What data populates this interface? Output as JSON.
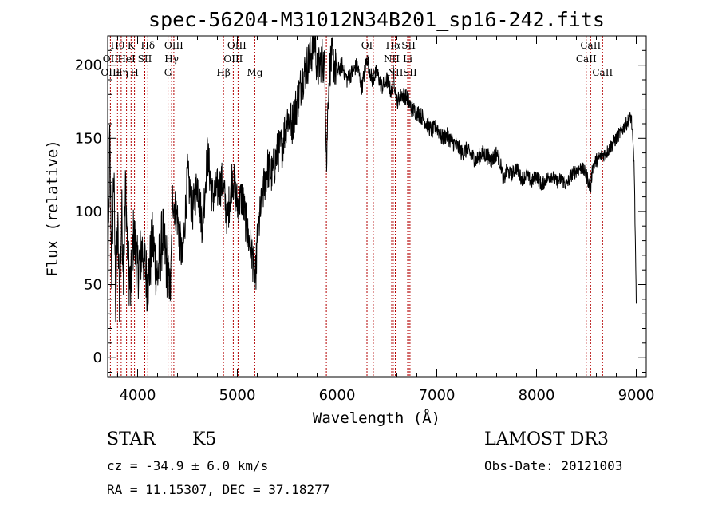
{
  "chart_data": {
    "type": "line",
    "title": "spec-56204-M31012N34B201_sp16-242.fits",
    "xlabel": "Wavelength (Å)",
    "ylabel": "Flux (relative)",
    "xlim": [
      3700,
      9100
    ],
    "ylim": [
      -13,
      220
    ],
    "x_ticks": [
      4000,
      5000,
      6000,
      7000,
      8000,
      9000
    ],
    "y_ticks": [
      0,
      50,
      100,
      150,
      200
    ],
    "grid": false,
    "series": [
      {
        "name": "flux",
        "x": [
          3700,
          3720,
          3740,
          3760,
          3780,
          3800,
          3820,
          3840,
          3860,
          3880,
          3900,
          3930,
          3960,
          4000,
          4050,
          4100,
          4150,
          4200,
          4250,
          4300,
          4330,
          4350,
          4400,
          4450,
          4500,
          4550,
          4600,
          4650,
          4700,
          4750,
          4800,
          4850,
          4900,
          4950,
          5000,
          5050,
          5100,
          5150,
          5180,
          5200,
          5250,
          5300,
          5350,
          5400,
          5450,
          5500,
          5550,
          5600,
          5650,
          5700,
          5750,
          5780,
          5800,
          5850,
          5880,
          5895,
          5910,
          5930,
          5950,
          6000,
          6050,
          6100,
          6150,
          6200,
          6250,
          6300,
          6350,
          6400,
          6450,
          6500,
          6550,
          6563,
          6600,
          6650,
          6700,
          6750,
          6800,
          6850,
          6900,
          6950,
          7000,
          7050,
          7100,
          7150,
          7200,
          7250,
          7300,
          7350,
          7400,
          7450,
          7500,
          7550,
          7600,
          7650,
          7670,
          7700,
          7750,
          7800,
          7850,
          7900,
          7950,
          8000,
          8050,
          8100,
          8150,
          8200,
          8250,
          8300,
          8350,
          8400,
          8450,
          8500,
          8542,
          8560,
          8600,
          8650,
          8700,
          8750,
          8800,
          8850,
          8900,
          8950,
          8980,
          9000
        ],
        "values": [
          20,
          150,
          60,
          130,
          40,
          90,
          35,
          100,
          60,
          120,
          70,
          45,
          85,
          60,
          75,
          50,
          80,
          55,
          85,
          60,
          45,
          110,
          95,
          65,
          125,
          100,
          120,
          90,
          140,
          110,
          115,
          120,
          95,
          125,
          105,
          110,
          85,
          70,
          50,
          80,
          110,
          130,
          125,
          140,
          145,
          165,
          160,
          175,
          190,
          200,
          210,
          218,
          195,
          205,
          195,
          130,
          180,
          200,
          205,
          195,
          200,
          190,
          195,
          200,
          185,
          205,
          190,
          195,
          185,
          190,
          180,
          195,
          175,
          180,
          178,
          170,
          168,
          165,
          160,
          155,
          158,
          150,
          152,
          148,
          145,
          140,
          142,
          138,
          135,
          140,
          138,
          135,
          140,
          130,
          120,
          128,
          125,
          130,
          122,
          125,
          120,
          125,
          118,
          122,
          125,
          120,
          122,
          118,
          125,
          128,
          130,
          125,
          115,
          130,
          135,
          138,
          140,
          145,
          150,
          155,
          160,
          165,
          130,
          35
        ]
      }
    ],
    "line_labels": [
      {
        "text": "Hθ",
        "x": 3798,
        "row": 1
      },
      {
        "text": "OII",
        "x": 3727,
        "row": 2
      },
      {
        "text": "OIII",
        "x": 3727,
        "row": 3
      },
      {
        "text": "K",
        "x": 3934,
        "row": 1
      },
      {
        "text": "HeI",
        "x": 3889,
        "row": 2
      },
      {
        "text": "Hη",
        "x": 3835,
        "row": 3
      },
      {
        "text": "SII",
        "x": 4072,
        "row": 2
      },
      {
        "text": "H",
        "x": 3969,
        "row": 3
      },
      {
        "text": "Hδ",
        "x": 4102,
        "row": 1
      },
      {
        "text": "OIII",
        "x": 4363,
        "row": 1
      },
      {
        "text": "Hγ",
        "x": 4341,
        "row": 2
      },
      {
        "text": "G",
        "x": 4305,
        "row": 3
      },
      {
        "text": "Hβ",
        "x": 4861,
        "row": 3
      },
      {
        "text": "OIII",
        "x": 4995,
        "row": 1
      },
      {
        "text": "OIII",
        "x": 4959,
        "row": 2
      },
      {
        "text": "Mg",
        "x": 5175,
        "row": 3
      },
      {
        "text": "OI",
        "x": 6300,
        "row": 1
      },
      {
        "text": "OI",
        "x": 6363,
        "row": 3
      },
      {
        "text": "Hα",
        "x": 6563,
        "row": 1
      },
      {
        "text": "NII",
        "x": 6548,
        "row": 2
      },
      {
        "text": "NII",
        "x": 6584,
        "row": 3
      },
      {
        "text": "SII",
        "x": 6717,
        "row": 1
      },
      {
        "text": "Li",
        "x": 6708,
        "row": 2
      },
      {
        "text": "SII",
        "x": 6731,
        "row": 3
      },
      {
        "text": "CaII",
        "x": 8542,
        "row": 1
      },
      {
        "text": "CaII",
        "x": 8498,
        "row": 2
      },
      {
        "text": "CaII",
        "x": 8662,
        "row": 3
      }
    ],
    "marker_lines": [
      3727,
      3798,
      3835,
      3889,
      3934,
      3969,
      4072,
      4102,
      4305,
      4341,
      4363,
      4861,
      4959,
      5007,
      5175,
      5893,
      6300,
      6363,
      6548,
      6563,
      6584,
      6708,
      6717,
      6731,
      8498,
      8542,
      8662
    ]
  },
  "info": {
    "object_type": "STAR",
    "subclass": "K5",
    "survey": "LAMOST DR3",
    "cz": "cz = -34.9 ± 6.0 km/s",
    "obs_date": "Obs-Date: 20121003",
    "coords": "RA =  11.15307, DEC =  37.18277"
  },
  "colors": {
    "spectrum": "#000000",
    "marker_line": "#b30000"
  }
}
